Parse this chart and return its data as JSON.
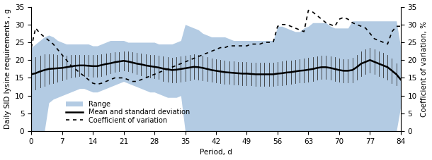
{
  "period": [
    0,
    1,
    2,
    3,
    4,
    5,
    6,
    7,
    8,
    9,
    10,
    11,
    12,
    13,
    14,
    15,
    16,
    17,
    18,
    19,
    20,
    21,
    22,
    23,
    24,
    25,
    26,
    27,
    28,
    29,
    30,
    31,
    32,
    33,
    34,
    35,
    36,
    37,
    38,
    39,
    40,
    41,
    42,
    43,
    44,
    45,
    46,
    47,
    48,
    49,
    50,
    51,
    52,
    53,
    54,
    55,
    56,
    57,
    58,
    59,
    60,
    61,
    62,
    63,
    64,
    65,
    66,
    67,
    68,
    69,
    70,
    71,
    72,
    73,
    74,
    75,
    76,
    77,
    78,
    79,
    80,
    81,
    82,
    83,
    84
  ],
  "mean": [
    16.0,
    16.3,
    16.8,
    17.2,
    17.5,
    17.6,
    17.7,
    17.8,
    18.0,
    18.2,
    18.4,
    18.5,
    18.5,
    18.4,
    18.3,
    18.3,
    18.6,
    18.9,
    19.1,
    19.4,
    19.6,
    19.8,
    19.6,
    19.3,
    19.0,
    18.8,
    18.5,
    18.3,
    18.1,
    17.9,
    17.6,
    17.4,
    17.2,
    17.3,
    17.5,
    17.7,
    17.9,
    18.1,
    18.0,
    17.8,
    17.5,
    17.2,
    17.0,
    16.8,
    16.6,
    16.5,
    16.4,
    16.3,
    16.2,
    16.2,
    16.1,
    16.0,
    16.0,
    16.0,
    16.0,
    16.0,
    16.2,
    16.3,
    16.5,
    16.6,
    16.8,
    17.0,
    17.1,
    17.3,
    17.5,
    17.8,
    18.0,
    18.0,
    17.8,
    17.5,
    17.2,
    17.0,
    17.0,
    17.2,
    18.0,
    19.0,
    19.5,
    20.0,
    19.5,
    19.0,
    18.5,
    18.0,
    17.0,
    16.0,
    14.5
  ],
  "sd": [
    4.0,
    4.5,
    4.5,
    4.5,
    4.2,
    4.0,
    3.8,
    3.5,
    3.3,
    3.2,
    3.1,
    3.0,
    3.0,
    3.0,
    3.1,
    3.1,
    3.1,
    3.0,
    2.9,
    2.8,
    2.7,
    2.7,
    2.8,
    2.9,
    3.0,
    3.1,
    3.2,
    3.2,
    3.3,
    3.3,
    3.4,
    3.5,
    3.5,
    3.5,
    3.5,
    3.5,
    3.5,
    3.5,
    3.5,
    3.4,
    3.3,
    3.2,
    3.2,
    3.2,
    3.2,
    3.2,
    3.2,
    3.2,
    3.2,
    3.2,
    3.2,
    3.2,
    3.2,
    3.2,
    3.2,
    3.2,
    3.3,
    3.3,
    3.3,
    3.3,
    3.3,
    3.3,
    3.3,
    3.3,
    3.3,
    3.3,
    3.3,
    3.3,
    3.3,
    3.3,
    3.3,
    3.3,
    3.3,
    3.4,
    3.5,
    3.5,
    3.5,
    3.5,
    3.5,
    3.5,
    3.5,
    3.5,
    3.5,
    3.0,
    2.0
  ],
  "range_min": [
    0.0,
    0.0,
    0.0,
    0.0,
    8.0,
    9.0,
    9.5,
    10.0,
    10.5,
    11.0,
    11.5,
    12.0,
    12.0,
    11.5,
    11.0,
    11.0,
    11.5,
    12.0,
    12.5,
    13.0,
    13.5,
    14.0,
    13.5,
    13.0,
    12.5,
    12.0,
    11.5,
    11.0,
    11.0,
    10.5,
    10.0,
    9.5,
    9.5,
    9.5,
    10.0,
    0.0,
    0.0,
    0.0,
    0.0,
    0.0,
    0.0,
    0.0,
    0.0,
    0.0,
    0.0,
    0.0,
    0.0,
    0.0,
    0.0,
    0.0,
    0.0,
    0.0,
    0.0,
    0.0,
    0.0,
    0.0,
    0.0,
    0.0,
    0.0,
    0.0,
    0.0,
    0.0,
    0.0,
    0.0,
    0.0,
    0.0,
    0.0,
    0.0,
    0.0,
    0.0,
    0.0,
    0.0,
    0.0,
    0.0,
    0.0,
    0.0,
    0.0,
    0.0,
    0.0,
    0.0,
    0.0,
    0.0,
    0.0,
    0.0,
    7.0
  ],
  "range_max": [
    23.5,
    24.5,
    25.5,
    26.5,
    27.0,
    26.5,
    25.5,
    25.0,
    24.5,
    24.5,
    24.5,
    24.5,
    24.5,
    24.5,
    24.0,
    24.0,
    24.5,
    25.0,
    25.5,
    25.5,
    25.5,
    25.5,
    25.0,
    25.0,
    25.0,
    25.0,
    25.0,
    25.0,
    25.0,
    24.5,
    24.5,
    24.5,
    24.5,
    25.0,
    25.5,
    30.0,
    29.5,
    29.0,
    28.5,
    27.5,
    27.0,
    26.5,
    26.5,
    26.5,
    26.5,
    26.0,
    25.5,
    25.5,
    25.5,
    25.5,
    25.5,
    25.5,
    25.5,
    25.5,
    25.5,
    25.5,
    29.5,
    29.5,
    29.0,
    28.5,
    28.0,
    28.0,
    29.0,
    29.5,
    30.5,
    30.5,
    30.5,
    30.5,
    29.5,
    29.0,
    29.0,
    29.0,
    29.0,
    31.0,
    31.0,
    31.0,
    31.0,
    31.0,
    31.0,
    31.0,
    31.0,
    31.0,
    31.0,
    31.0,
    23.5
  ],
  "cv": [
    23.5,
    29.0,
    27.5,
    26.5,
    25.5,
    24.5,
    23.0,
    21.5,
    20.0,
    18.5,
    17.5,
    16.5,
    15.5,
    14.5,
    13.5,
    13.2,
    13.5,
    14.0,
    14.5,
    15.0,
    15.0,
    15.0,
    14.5,
    14.0,
    14.0,
    14.5,
    15.0,
    15.5,
    16.0,
    16.5,
    17.0,
    17.5,
    18.0,
    18.5,
    19.0,
    19.5,
    20.0,
    20.5,
    21.0,
    21.5,
    22.0,
    22.5,
    23.0,
    23.5,
    23.5,
    24.0,
    24.0,
    24.0,
    24.0,
    24.0,
    24.5,
    24.5,
    24.5,
    25.0,
    25.0,
    25.0,
    29.5,
    30.0,
    30.0,
    29.5,
    29.0,
    28.5,
    28.0,
    34.0,
    33.5,
    32.5,
    31.5,
    30.5,
    30.0,
    29.5,
    31.5,
    32.0,
    31.5,
    30.5,
    30.0,
    29.5,
    29.0,
    27.5,
    26.0,
    25.5,
    25.0,
    24.5,
    28.0,
    29.5,
    29.5
  ],
  "ylim_left": [
    0,
    35
  ],
  "ylim_right": [
    0,
    35
  ],
  "xticks": [
    0,
    7,
    14,
    21,
    28,
    35,
    42,
    49,
    56,
    63,
    70,
    77,
    84
  ],
  "yticks_left": [
    0,
    5,
    10,
    15,
    20,
    25,
    30,
    35
  ],
  "yticks_right": [
    0,
    5,
    10,
    15,
    20,
    25,
    30,
    35
  ],
  "fill_color": "#8BAFD4",
  "fill_alpha": 0.65,
  "mean_color": "#000000",
  "sd_color": "#333333",
  "cv_color": "#000000",
  "xlabel": "Period, d",
  "ylabel_left": "Daily SID lysine requirements , g",
  "ylabel_right": "Coefficient of variation, %",
  "legend_range": "Range",
  "legend_mean": "Mean and standard deviation",
  "legend_cv": "Coefficient of variation",
  "label_fontsize": 7.5,
  "tick_fontsize": 7.5,
  "legend_fontsize": 7
}
